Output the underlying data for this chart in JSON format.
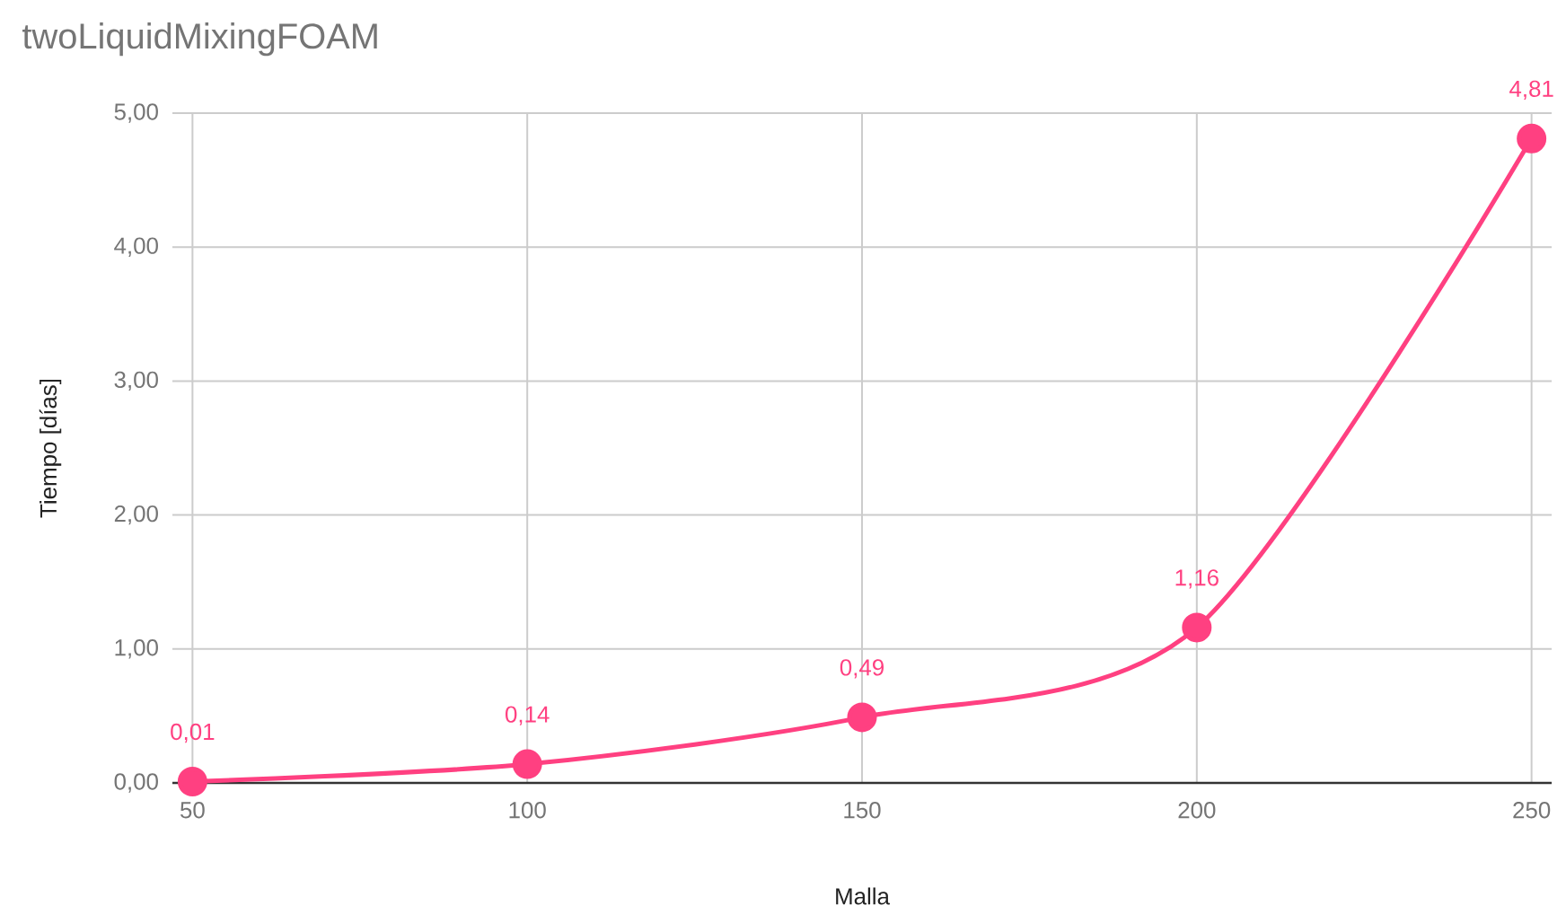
{
  "chart_data": {
    "type": "line",
    "title": "twoLiquidMixingFOAM",
    "xlabel": "Malla",
    "ylabel": "Tiempo [días]",
    "x": [
      50,
      100,
      150,
      200,
      250
    ],
    "values": [
      0.01,
      0.14,
      0.49,
      1.16,
      4.81
    ],
    "value_labels": [
      "0,01",
      "0,14",
      "0,49",
      "1,16",
      "4,81"
    ],
    "color": "#ff4081",
    "xlim": [
      47,
      253
    ],
    "ylim": [
      0,
      5
    ],
    "xticks": [
      50,
      100,
      150,
      200,
      250
    ],
    "yticks": [
      {
        "value": 0,
        "label": "0,00"
      },
      {
        "value": 1,
        "label": "1,00"
      },
      {
        "value": 2,
        "label": "2,00"
      },
      {
        "value": 3,
        "label": "3,00"
      },
      {
        "value": 4,
        "label": "4,00"
      },
      {
        "value": 5,
        "label": "5,00"
      }
    ],
    "grid": true,
    "marker": "circle",
    "line_style": "solid"
  }
}
